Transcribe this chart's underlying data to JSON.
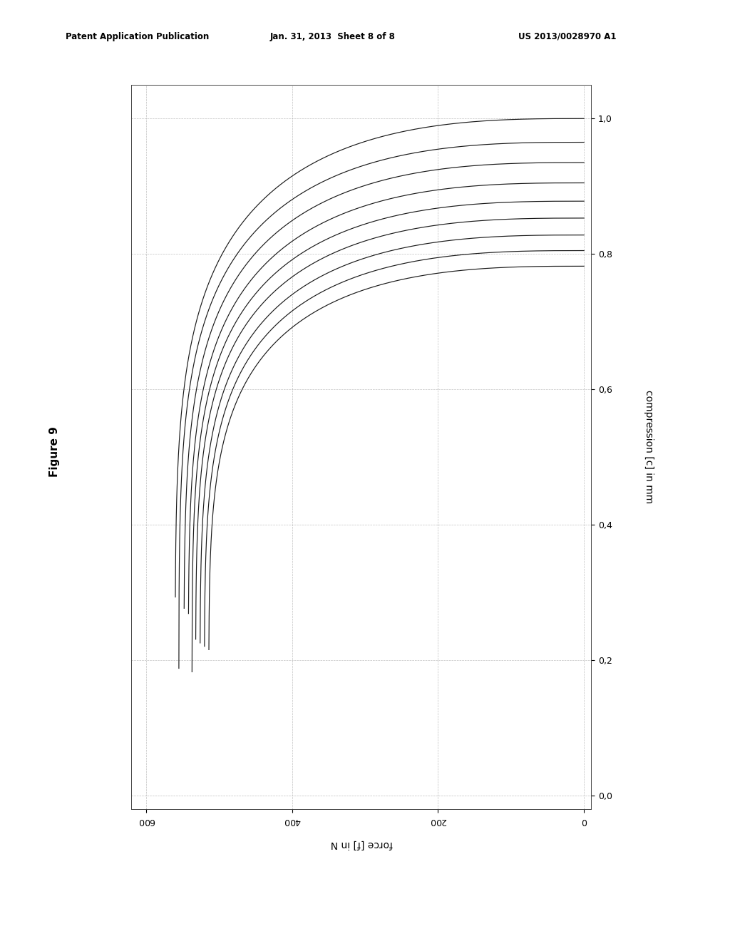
{
  "xlabel": "force [f] in N",
  "ylabel": "compression [c] in mm",
  "x_min": 0,
  "x_max": 600,
  "y_min": 0.0,
  "y_max": 1.0,
  "x_ticks": [
    0,
    200,
    400,
    600
  ],
  "y_ticks": [
    0.0,
    0.2,
    0.4,
    0.6,
    0.8,
    1.0
  ],
  "grid_color": "#b0b0b0",
  "line_color": "#1a1a1a",
  "background_color": "#ffffff",
  "header_left": "Patent Application Publication",
  "header_mid": "Jan. 31, 2013  Sheet 8 of 8",
  "header_right": "US 2013/0028970 A1",
  "figure_label": "Figure 9",
  "num_curves": 9,
  "curve_params": [
    {
      "f_max": 560,
      "alpha": 2.8,
      "c_max": 1.0
    },
    {
      "f_max": 555,
      "alpha": 2.8,
      "c_max": 0.965
    },
    {
      "f_max": 548,
      "alpha": 2.8,
      "c_max": 0.935
    },
    {
      "f_max": 542,
      "alpha": 2.8,
      "c_max": 0.905
    },
    {
      "f_max": 537,
      "alpha": 2.8,
      "c_max": 0.878
    },
    {
      "f_max": 532,
      "alpha": 2.8,
      "c_max": 0.853
    },
    {
      "f_max": 526,
      "alpha": 2.8,
      "c_max": 0.828
    },
    {
      "f_max": 520,
      "alpha": 2.8,
      "c_max": 0.805
    },
    {
      "f_max": 514,
      "alpha": 2.8,
      "c_max": 0.782
    }
  ]
}
